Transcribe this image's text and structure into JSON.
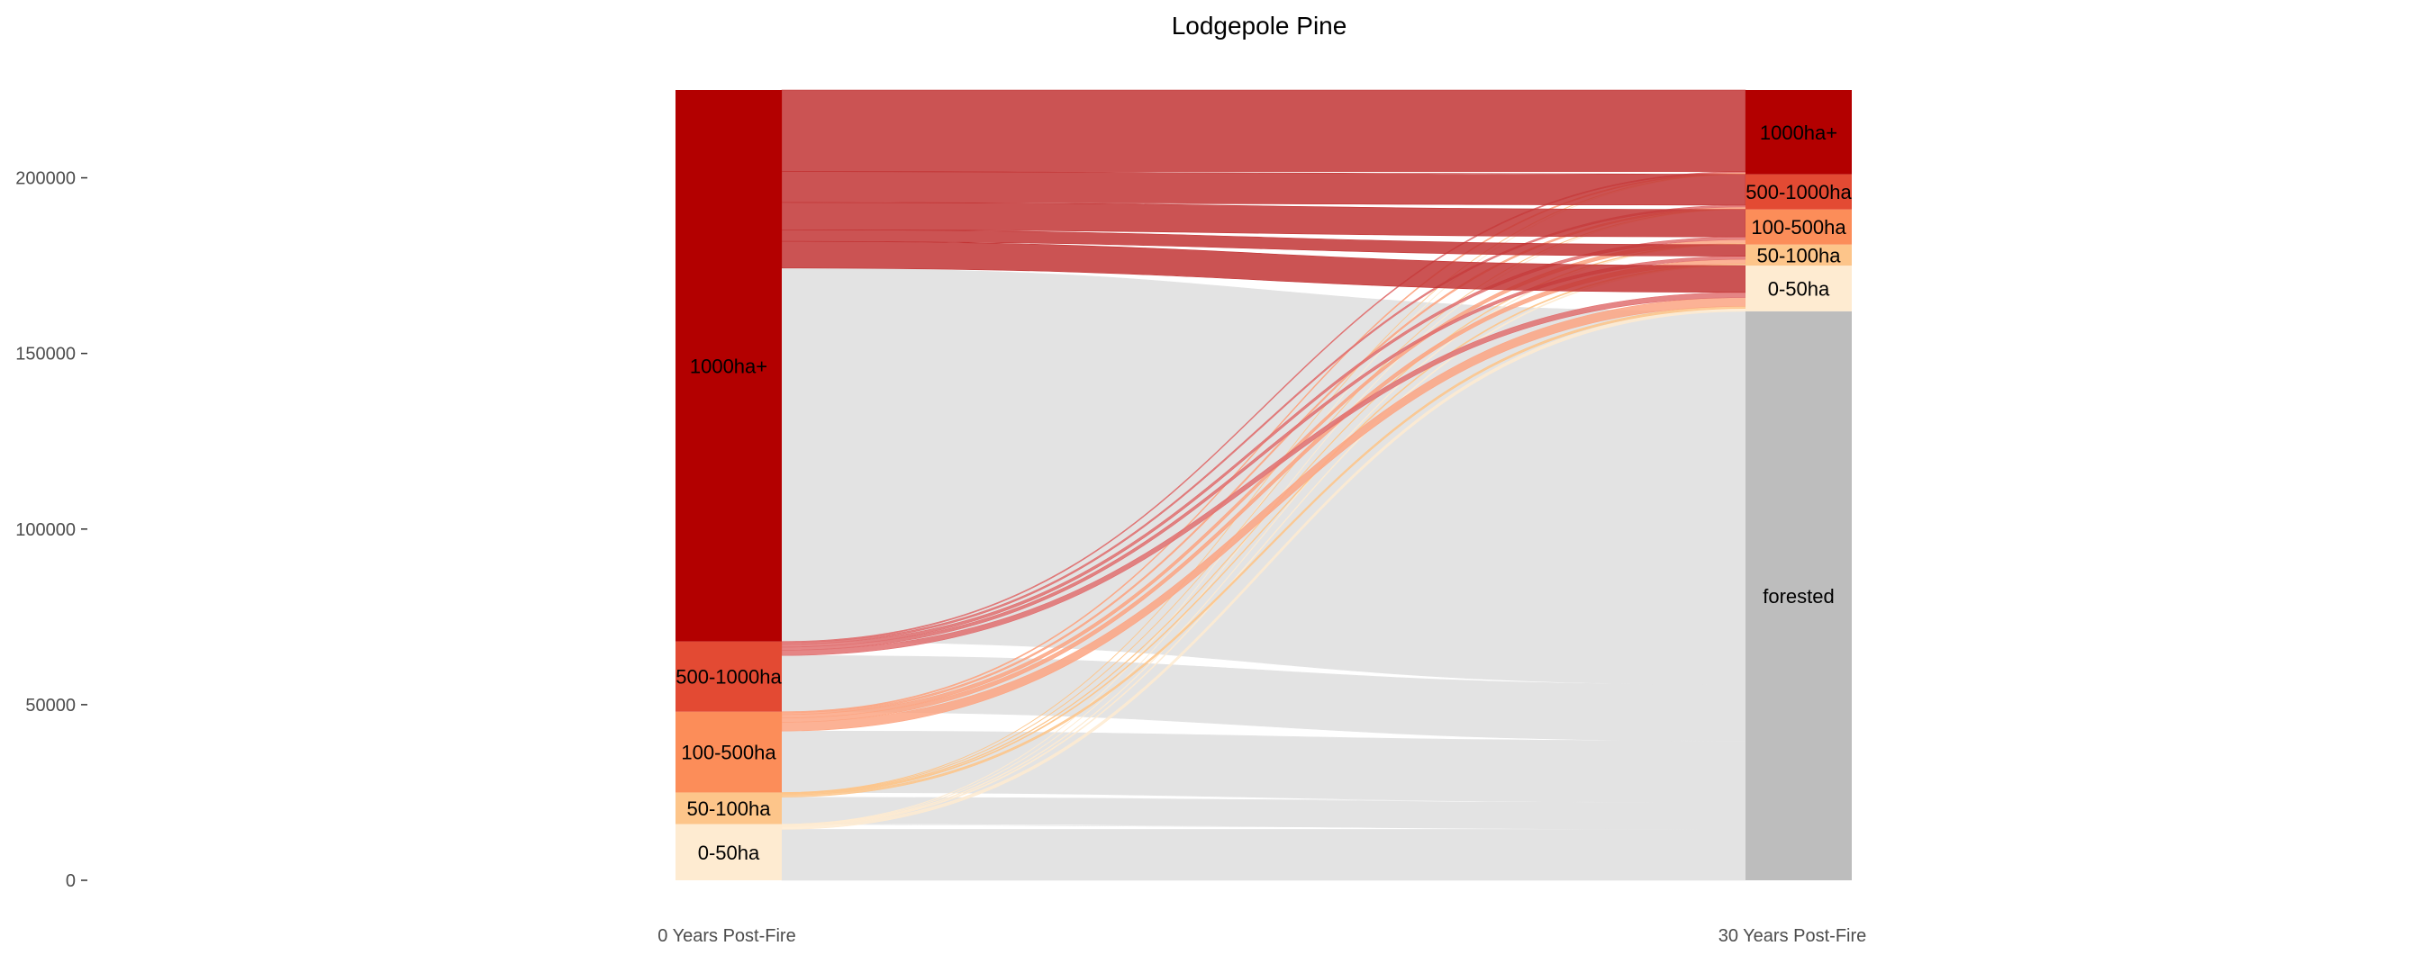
{
  "chart_data": {
    "type": "alluvial",
    "title": "Lodgepole Pine",
    "xlabel": "",
    "ylabel": "",
    "ylim": [
      0,
      225000
    ],
    "yticks": [
      {
        "value": 0,
        "label": "0"
      },
      {
        "value": 50000,
        "label": "50000"
      },
      {
        "value": 100000,
        "label": "100000"
      },
      {
        "value": 150000,
        "label": "150000"
      },
      {
        "value": 200000,
        "label": "200000"
      }
    ],
    "axes": [
      {
        "label": "0 Years Post-Fire"
      },
      {
        "label": "30 Years Post-Fire"
      }
    ],
    "grid": false,
    "legend": "none",
    "strata": {
      "left": [
        {
          "label": "0-50ha",
          "lo": 0,
          "hi": 16000,
          "color": "#feebd1"
        },
        {
          "label": "50-100ha",
          "lo": 16000,
          "hi": 25000,
          "color": "#fdc58a"
        },
        {
          "label": "100-500ha",
          "lo": 25000,
          "hi": 48000,
          "color": "#fc8d59"
        },
        {
          "label": "500-1000ha",
          "lo": 48000,
          "hi": 68000,
          "color": "#e34a33"
        },
        {
          "label": "1000ha+",
          "lo": 68000,
          "hi": 225000,
          "color": "#b30000"
        }
      ],
      "right": [
        {
          "label": "forested",
          "lo": 0,
          "hi": 162000,
          "color": "#bdbdbd"
        },
        {
          "label": "0-50ha",
          "lo": 162000,
          "hi": 175000,
          "color": "#feebd1"
        },
        {
          "label": "50-100ha",
          "lo": 175000,
          "hi": 181000,
          "color": "#fdc58a"
        },
        {
          "label": "100-500ha",
          "lo": 181000,
          "hi": 191000,
          "color": "#fc8d59"
        },
        {
          "label": "500-1000ha",
          "lo": 191000,
          "hi": 201000,
          "color": "#e34a33"
        },
        {
          "label": "1000ha+",
          "lo": 201000,
          "hi": 225000,
          "color": "#b30000"
        }
      ]
    },
    "flows": [
      {
        "from": "0-50ha",
        "to": "forested",
        "value": 14500,
        "color": "#e3e3e3"
      },
      {
        "from": "0-50ha",
        "to": "0-50ha",
        "value": 800,
        "color": "#feebd1"
      },
      {
        "from": "0-50ha",
        "to": "50-100ha",
        "value": 300,
        "color": "#feebd1"
      },
      {
        "from": "0-50ha",
        "to": "100-500ha",
        "value": 200,
        "color": "#feebd1"
      },
      {
        "from": "0-50ha",
        "to": "500-1000ha",
        "value": 100,
        "color": "#feebd1"
      },
      {
        "from": "0-50ha",
        "to": "1000ha+",
        "value": 100,
        "color": "#feebd1"
      },
      {
        "from": "50-100ha",
        "to": "forested",
        "value": 7700,
        "color": "#e3e3e3"
      },
      {
        "from": "50-100ha",
        "to": "0-50ha",
        "value": 600,
        "color": "#fdc58a"
      },
      {
        "from": "50-100ha",
        "to": "50-100ha",
        "value": 300,
        "color": "#fdc58a"
      },
      {
        "from": "50-100ha",
        "to": "100-500ha",
        "value": 200,
        "color": "#fdc58a"
      },
      {
        "from": "50-100ha",
        "to": "500-1000ha",
        "value": 100,
        "color": "#fdc58a"
      },
      {
        "from": "50-100ha",
        "to": "1000ha+",
        "value": 100,
        "color": "#fdc58a"
      },
      {
        "from": "100-500ha",
        "to": "forested",
        "value": 17500,
        "color": "#e3e3e3"
      },
      {
        "from": "100-500ha",
        "to": "0-50ha",
        "value": 2500,
        "color": "#fca582"
      },
      {
        "from": "100-500ha",
        "to": "50-100ha",
        "value": 1200,
        "color": "#fca582"
      },
      {
        "from": "100-500ha",
        "to": "100-500ha",
        "value": 1000,
        "color": "#fca582"
      },
      {
        "from": "100-500ha",
        "to": "500-1000ha",
        "value": 500,
        "color": "#fca582"
      },
      {
        "from": "100-500ha",
        "to": "1000ha+",
        "value": 300,
        "color": "#fca582"
      },
      {
        "from": "500-1000ha",
        "to": "forested",
        "value": 16000,
        "color": "#e3e3e3"
      },
      {
        "from": "500-1000ha",
        "to": "0-50ha",
        "value": 1500,
        "color": "#e07070"
      },
      {
        "from": "500-1000ha",
        "to": "50-100ha",
        "value": 900,
        "color": "#e07070"
      },
      {
        "from": "500-1000ha",
        "to": "100-500ha",
        "value": 800,
        "color": "#e07070"
      },
      {
        "from": "500-1000ha",
        "to": "500-1000ha",
        "value": 500,
        "color": "#e07070"
      },
      {
        "from": "500-1000ha",
        "to": "1000ha+",
        "value": 300,
        "color": "#e07070"
      },
      {
        "from": "1000ha+",
        "to": "forested",
        "value": 106300,
        "color": "#e3e3e3"
      },
      {
        "from": "1000ha+",
        "to": "0-50ha",
        "value": 7600,
        "color": "#c23535"
      },
      {
        "from": "1000ha+",
        "to": "50-100ha",
        "value": 3300,
        "color": "#c23535"
      },
      {
        "from": "1000ha+",
        "to": "100-500ha",
        "value": 7800,
        "color": "#c23535"
      },
      {
        "from": "1000ha+",
        "to": "500-1000ha",
        "value": 8800,
        "color": "#c23535"
      },
      {
        "from": "1000ha+",
        "to": "1000ha+",
        "value": 23200,
        "color": "#c23535"
      }
    ]
  }
}
